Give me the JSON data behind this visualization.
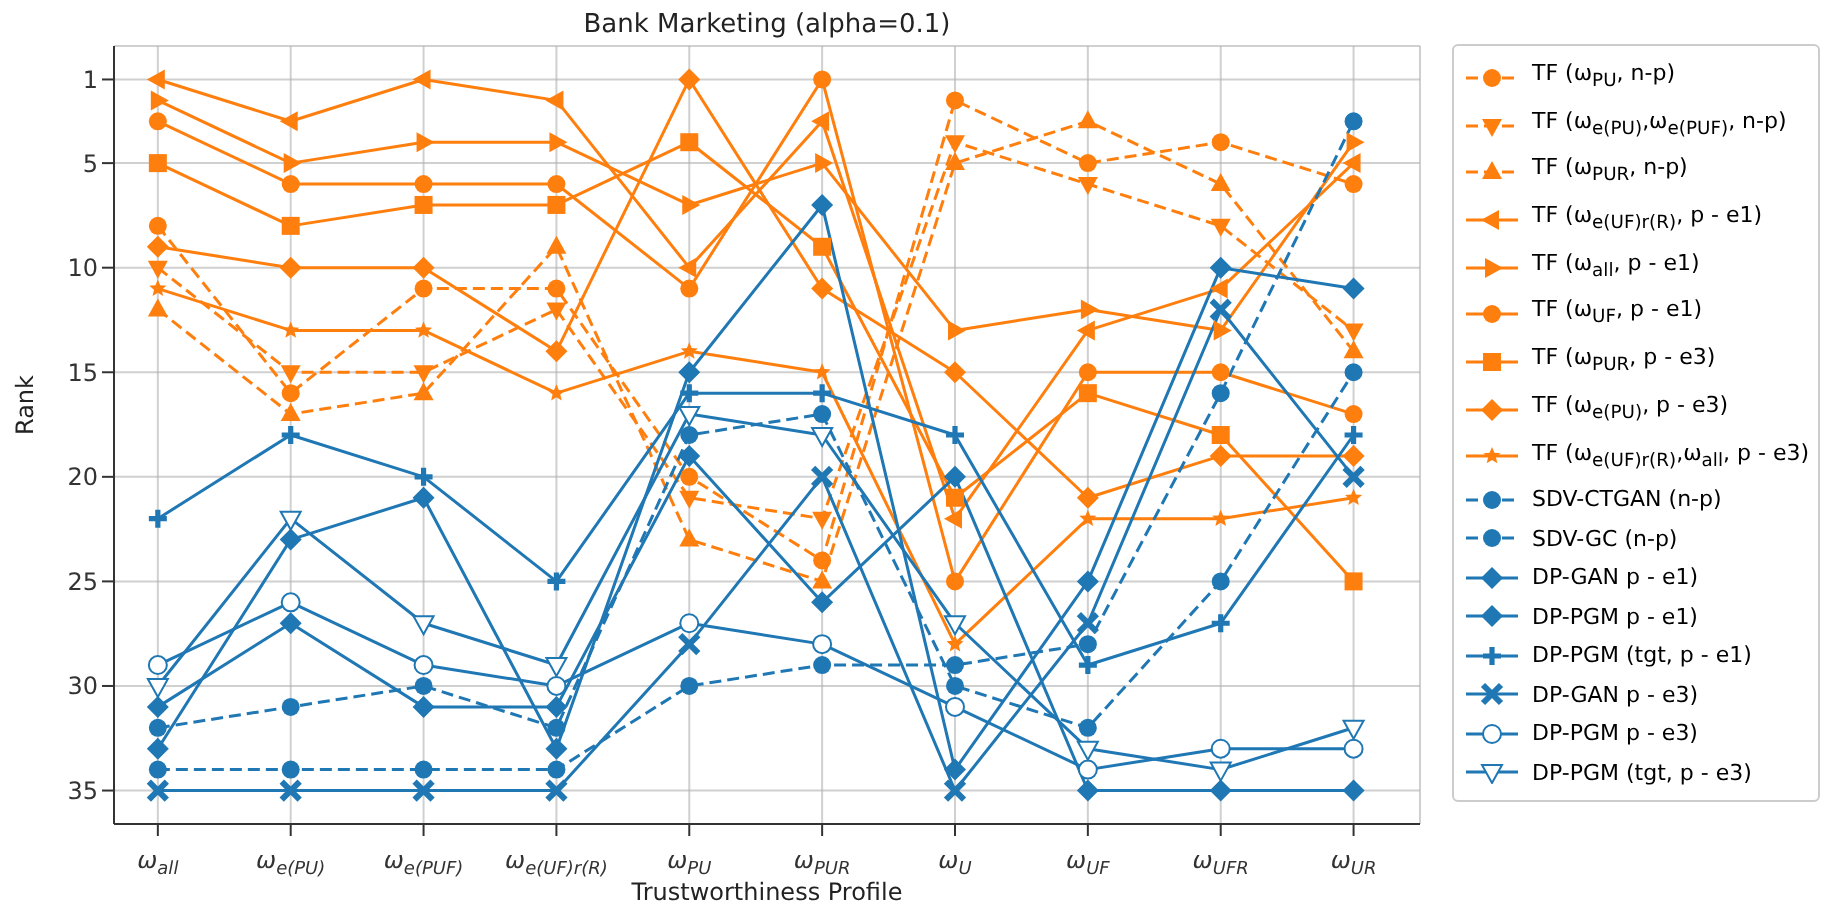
{
  "chart_data": {
    "type": "line",
    "title": "Bank Marketing (alpha=0.1)",
    "xlabel": "Trustworthiness Profile",
    "ylabel": "Rank",
    "categories": [
      "ω$_{all}$",
      "ω$_{e(PU)}$",
      "ω$_{e(PUF)}$",
      "ω$_{e(UF)r(R)}$",
      "ω$_{PU}$",
      "ω$_{PUR}$",
      "ω$_{U}$",
      "ω$_{UF}$",
      "ω$_{UFR}$",
      "ω$_{UR}$"
    ],
    "ylim": [
      36.6,
      -0.6
    ],
    "yticks": [
      1,
      5,
      10,
      15,
      20,
      25,
      30,
      35
    ],
    "grid": true,
    "legend": "right",
    "series": [
      {
        "name": "TF (ω$_{PU}$, n-p)",
        "color": "#ff7f0e",
        "marker": "circle",
        "line_style": "dashed",
        "values": [
          8,
          16,
          11,
          11,
          20,
          24,
          2,
          5,
          4,
          6
        ]
      },
      {
        "name": "TF (ω$_{e(PU)}$,ω$_{e(PUF)}$, n-p)",
        "color": "#ff7f0e",
        "marker": "triangle-down",
        "line_style": "dashed",
        "values": [
          10,
          15,
          15,
          12,
          21,
          22,
          4,
          6,
          8,
          13
        ]
      },
      {
        "name": "TF (ω$_{PUR}$, n-p)",
        "color": "#ff7f0e",
        "marker": "triangle",
        "line_style": "dashed",
        "values": [
          12,
          17,
          16,
          9,
          23,
          25,
          5,
          3,
          6,
          14
        ]
      },
      {
        "name": "TF (ω$_{e(UF)r(R)}$, p - e1)",
        "color": "#ff7f0e",
        "marker": "triangle-left",
        "line_style": "solid",
        "values": [
          1,
          3,
          1,
          2,
          10,
          3,
          22,
          13,
          11,
          5
        ]
      },
      {
        "name": "TF (ω$_{all}$, p - e1)",
        "color": "#ff7f0e",
        "marker": "triangle-right",
        "line_style": "solid",
        "values": [
          2,
          5,
          4,
          4,
          7,
          5,
          13,
          12,
          13,
          4
        ]
      },
      {
        "name": "TF (ω$_{UF}$, p - e1)",
        "color": "#ff7f0e",
        "marker": "circle",
        "line_style": "solid",
        "values": [
          3,
          6,
          6,
          6,
          11,
          1,
          25,
          15,
          15,
          17
        ]
      },
      {
        "name": "TF (ω$_{PUR}$, p - e3)",
        "color": "#ff7f0e",
        "marker": "square",
        "line_style": "solid",
        "values": [
          5,
          8,
          7,
          7,
          4,
          9,
          21,
          16,
          18,
          25
        ]
      },
      {
        "name": "TF (ω$_{e(PU)}$, p - e3)",
        "color": "#ff7f0e",
        "marker": "diamond",
        "line_style": "solid",
        "values": [
          9,
          10,
          10,
          14,
          1,
          11,
          15,
          21,
          19,
          19
        ]
      },
      {
        "name": "TF (ω$_{e(UF)r(R)}$,ω$_{all}$, p - e3)",
        "color": "#ff7f0e",
        "marker": "star",
        "line_style": "solid",
        "values": [
          11,
          13,
          13,
          16,
          14,
          15,
          28,
          22,
          22,
          21
        ]
      },
      {
        "name": "SDV-CTGAN (n-p)",
        "color": "#1f77b4",
        "marker": "circle",
        "line_style": "dashed",
        "values": [
          32,
          31,
          30,
          32,
          18,
          17,
          30,
          32,
          25,
          15
        ]
      },
      {
        "name": "SDV-GC (n-p)",
        "color": "#1f77b4",
        "marker": "circle",
        "line_style": "dashed",
        "values": [
          34,
          34,
          34,
          34,
          30,
          29,
          29,
          28,
          16,
          3
        ]
      },
      {
        "name": "DP-GAN  p - e1)",
        "color": "#1f77b4",
        "marker": "diamond",
        "line_style": "solid",
        "values": [
          33,
          23,
          21,
          33,
          15,
          7,
          34,
          25,
          10,
          11
        ]
      },
      {
        "name": "DP-PGM  p - e1)",
        "color": "#1f77b4",
        "marker": "diamond",
        "line_style": "solid",
        "values": [
          31,
          27,
          31,
          31,
          19,
          26,
          20,
          35,
          35,
          35
        ]
      },
      {
        "name": "DP-PGM (tgt, p - e1)",
        "color": "#1f77b4",
        "marker": "cross",
        "line_style": "solid",
        "values": [
          22,
          18,
          20,
          25,
          16,
          16,
          18,
          29,
          27,
          18
        ]
      },
      {
        "name": "DP-GAN  p - e3)",
        "color": "#1f77b4",
        "marker": "x",
        "line_style": "solid",
        "values": [
          35,
          35,
          35,
          35,
          28,
          20,
          35,
          27,
          12,
          20
        ]
      },
      {
        "name": "DP-PGM  p - e3)",
        "color": "#1f77b4",
        "marker": "circle-open",
        "line_style": "solid",
        "values": [
          29,
          26,
          29,
          30,
          27,
          28,
          31,
          34,
          33,
          33
        ]
      },
      {
        "name": "DP-PGM (tgt, p - e3)",
        "color": "#1f77b4",
        "marker": "triangle-down-open",
        "line_style": "solid",
        "values": [
          30,
          22,
          27,
          29,
          17,
          18,
          27,
          33,
          34,
          32
        ]
      }
    ]
  }
}
